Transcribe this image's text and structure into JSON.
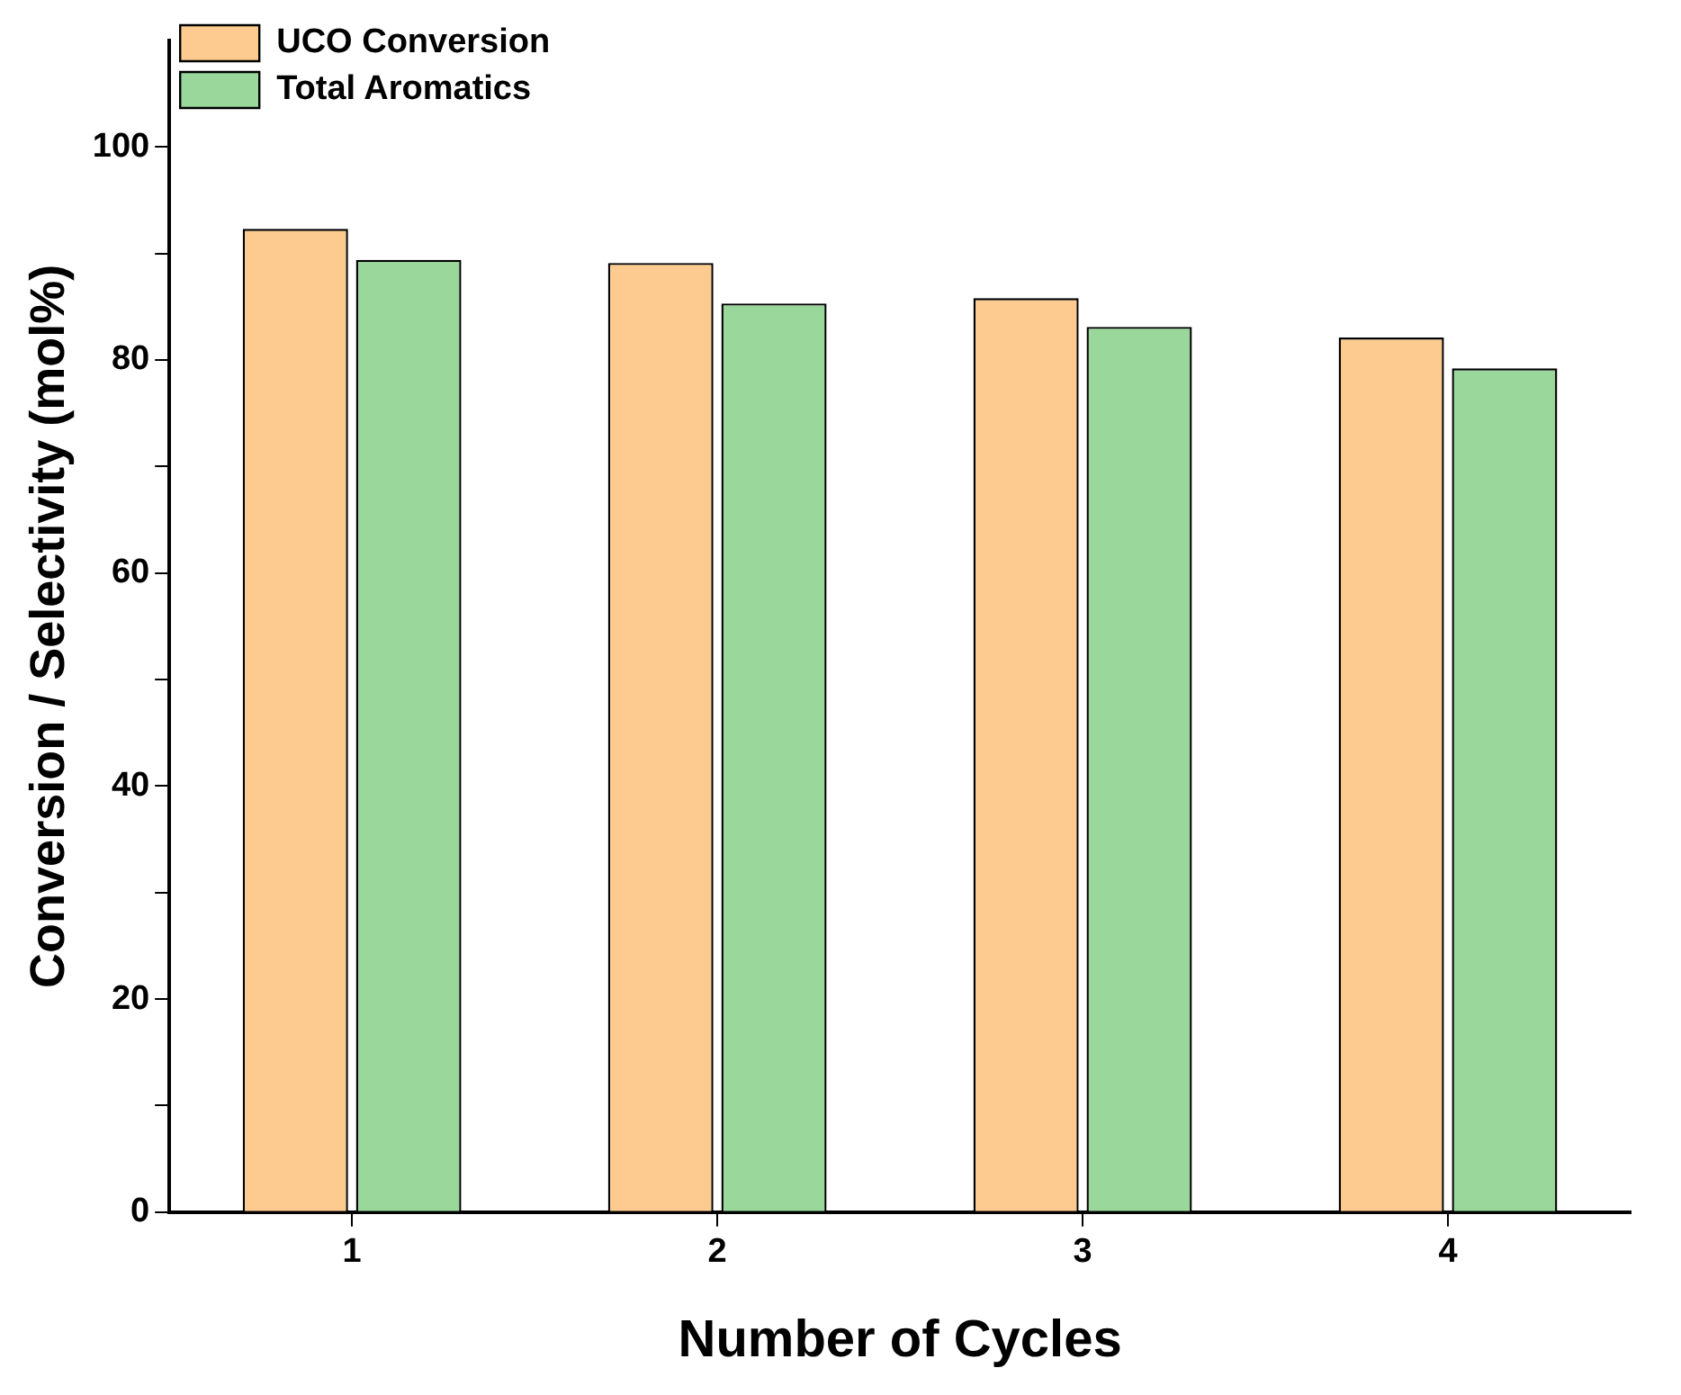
{
  "chart_data": {
    "type": "bar",
    "xlabel": "Number of Cycles",
    "ylabel": "Conversion / Selectivity (mol%)",
    "categories": [
      "1",
      "2",
      "3",
      "4"
    ],
    "series": [
      {
        "name": "UCO Conversion",
        "color": "#fdcb8f",
        "values": [
          92.3,
          89.1,
          85.8,
          82.1
        ]
      },
      {
        "name": "Total Aromatics",
        "color": "#9ad79b",
        "values": [
          89.4,
          85.3,
          83.1,
          79.2
        ]
      }
    ],
    "ylim": [
      0,
      110
    ],
    "yticks": [
      0,
      {
        "value": 10,
        "label": null
      },
      20,
      {
        "value": 30,
        "label": null
      },
      40,
      {
        "value": 50,
        "label": null
      },
      60,
      {
        "value": 70,
        "label": null
      },
      80,
      {
        "value": 90,
        "label": null
      },
      100
    ],
    "grid": false,
    "legend": "top left"
  }
}
